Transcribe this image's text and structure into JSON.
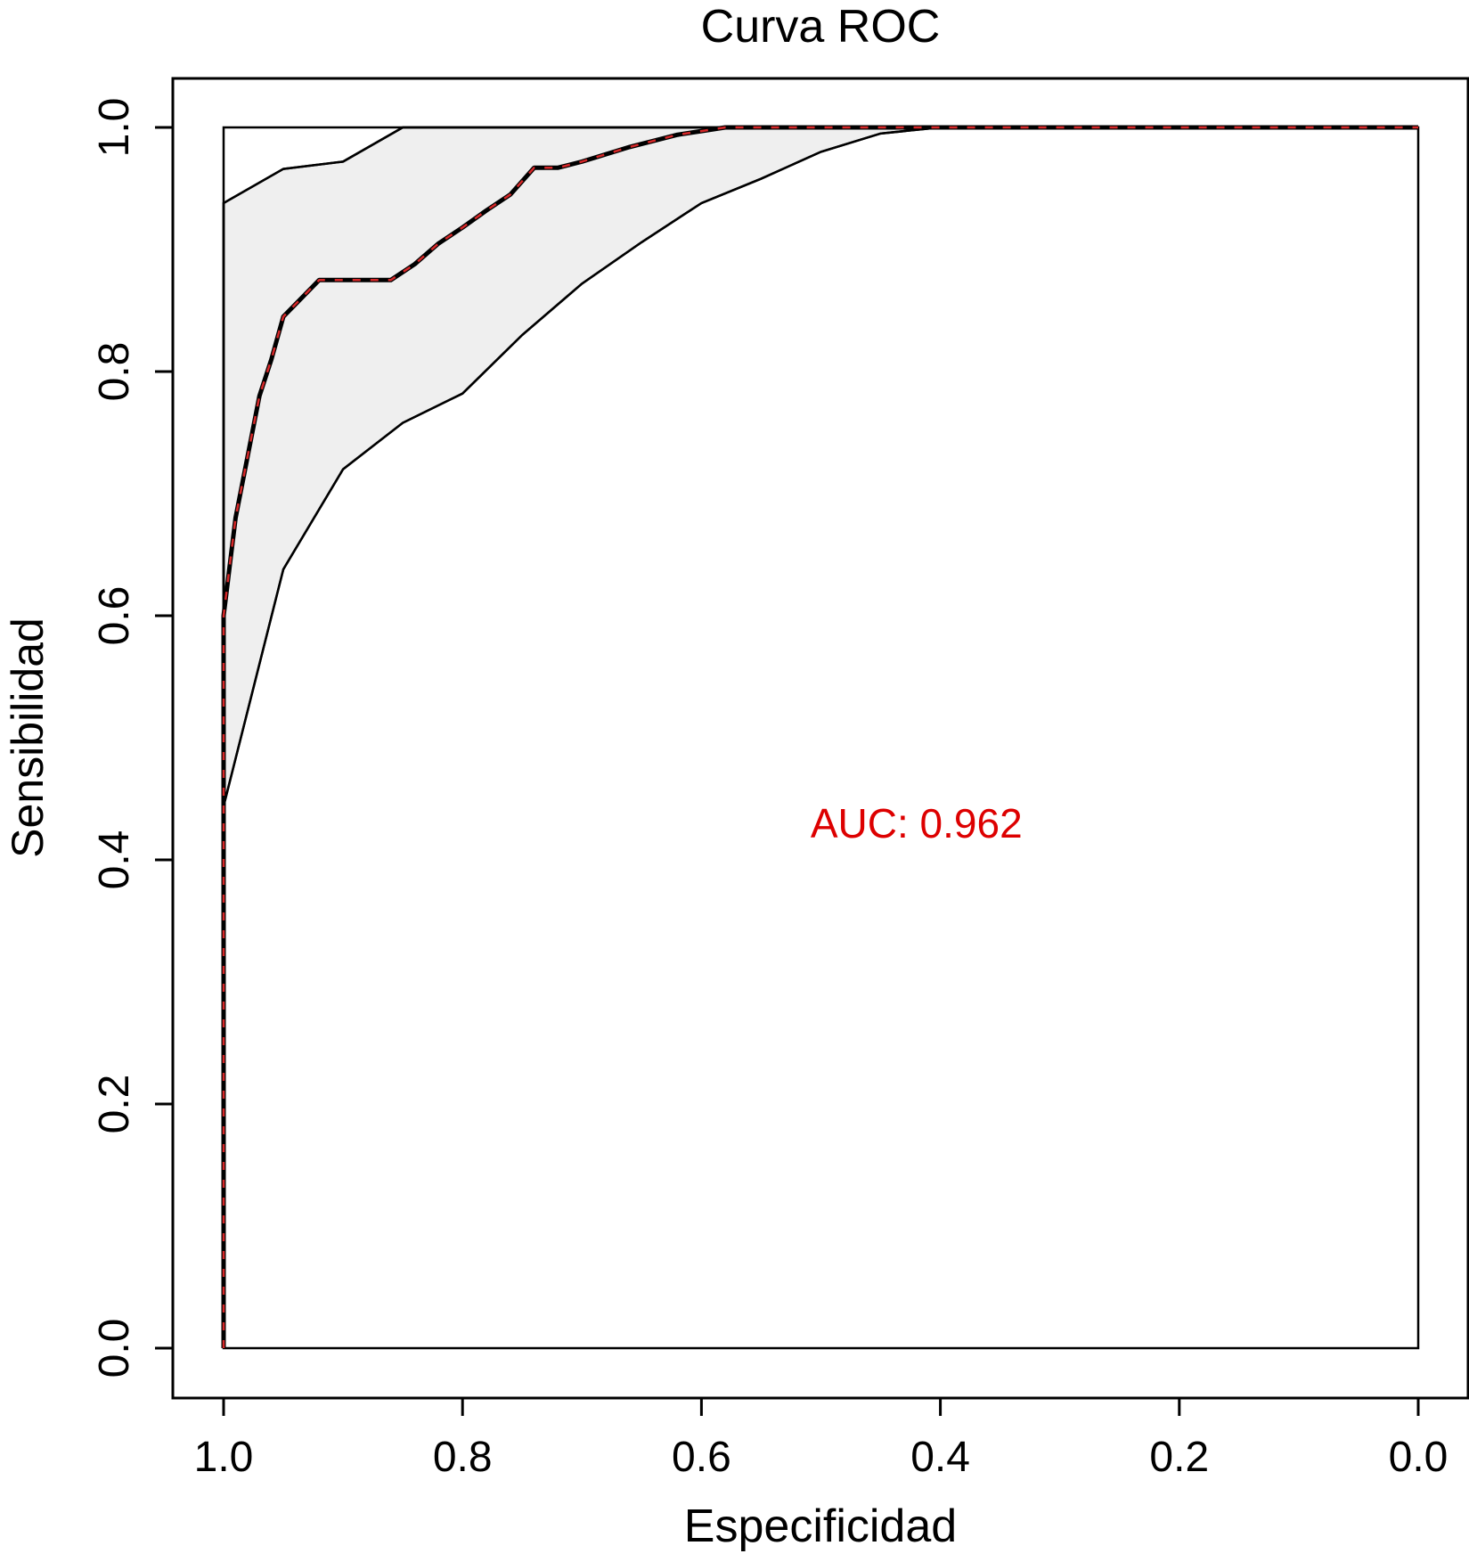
{
  "chart_data": {
    "type": "line",
    "title": "Curva ROC",
    "xlabel": "Especificidad",
    "ylabel": "Sensibilidad",
    "xlim": [
      1.0,
      0.0
    ],
    "ylim": [
      0.0,
      1.0
    ],
    "x_reversed": true,
    "xticks": [
      "1.0",
      "0.8",
      "0.6",
      "0.4",
      "0.2",
      "0.0"
    ],
    "xtick_values": [
      1.0,
      0.8,
      0.6,
      0.4,
      0.2,
      0.0
    ],
    "yticks": [
      "0.0",
      "0.2",
      "0.4",
      "0.6",
      "0.8",
      "1.0"
    ],
    "ytick_values": [
      0.0,
      0.2,
      0.4,
      0.6,
      0.8,
      1.0
    ],
    "grid": false,
    "annotation": {
      "text": "AUC: 0.962",
      "x": 0.42,
      "y": 0.43,
      "color": "#dd0000"
    },
    "colors": {
      "band_fill": "#efefef",
      "curve": "#000000",
      "curve_dash": "#d62728",
      "axes": "#000000"
    },
    "confidence_band": {
      "upper": {
        "x": [
          1.0,
          1.0,
          0.95,
          0.9,
          0.85,
          0.8,
          0.6,
          0.4,
          0.2,
          0.0
        ],
        "y": [
          0.0,
          0.938,
          0.966,
          0.972,
          1.0,
          1.0,
          1.0,
          1.0,
          1.0,
          1.0
        ]
      },
      "lower": {
        "x": [
          1.0,
          1.0,
          0.95,
          0.9,
          0.85,
          0.8,
          0.75,
          0.7,
          0.65,
          0.6,
          0.55,
          0.5,
          0.45,
          0.4,
          0.2,
          0.0
        ],
        "y": [
          0.0,
          0.444,
          0.638,
          0.72,
          0.758,
          0.782,
          0.83,
          0.872,
          0.906,
          0.938,
          0.958,
          0.98,
          0.995,
          1.0,
          1.0,
          1.0
        ]
      }
    },
    "series": [
      {
        "x": [
          1.0,
          1.0,
          0.99,
          0.98,
          0.97,
          0.96,
          0.95,
          0.93,
          0.92,
          0.9,
          0.88,
          0.86,
          0.84,
          0.82,
          0.8,
          0.78,
          0.76,
          0.74,
          0.72,
          0.7,
          0.68,
          0.66,
          0.64,
          0.62,
          0.6,
          0.58,
          0.56,
          0.54,
          0.5,
          0.4,
          0.2,
          0.0
        ],
        "y": [
          0.0,
          0.6,
          0.68,
          0.73,
          0.78,
          0.81,
          0.845,
          0.865,
          0.875,
          0.875,
          0.875,
          0.875,
          0.888,
          0.905,
          0.918,
          0.932,
          0.945,
          0.967,
          0.967,
          0.972,
          0.978,
          0.984,
          0.989,
          0.994,
          0.997,
          1.0,
          1.0,
          1.0,
          1.0,
          1.0,
          1.0,
          1.0
        ]
      }
    ]
  }
}
